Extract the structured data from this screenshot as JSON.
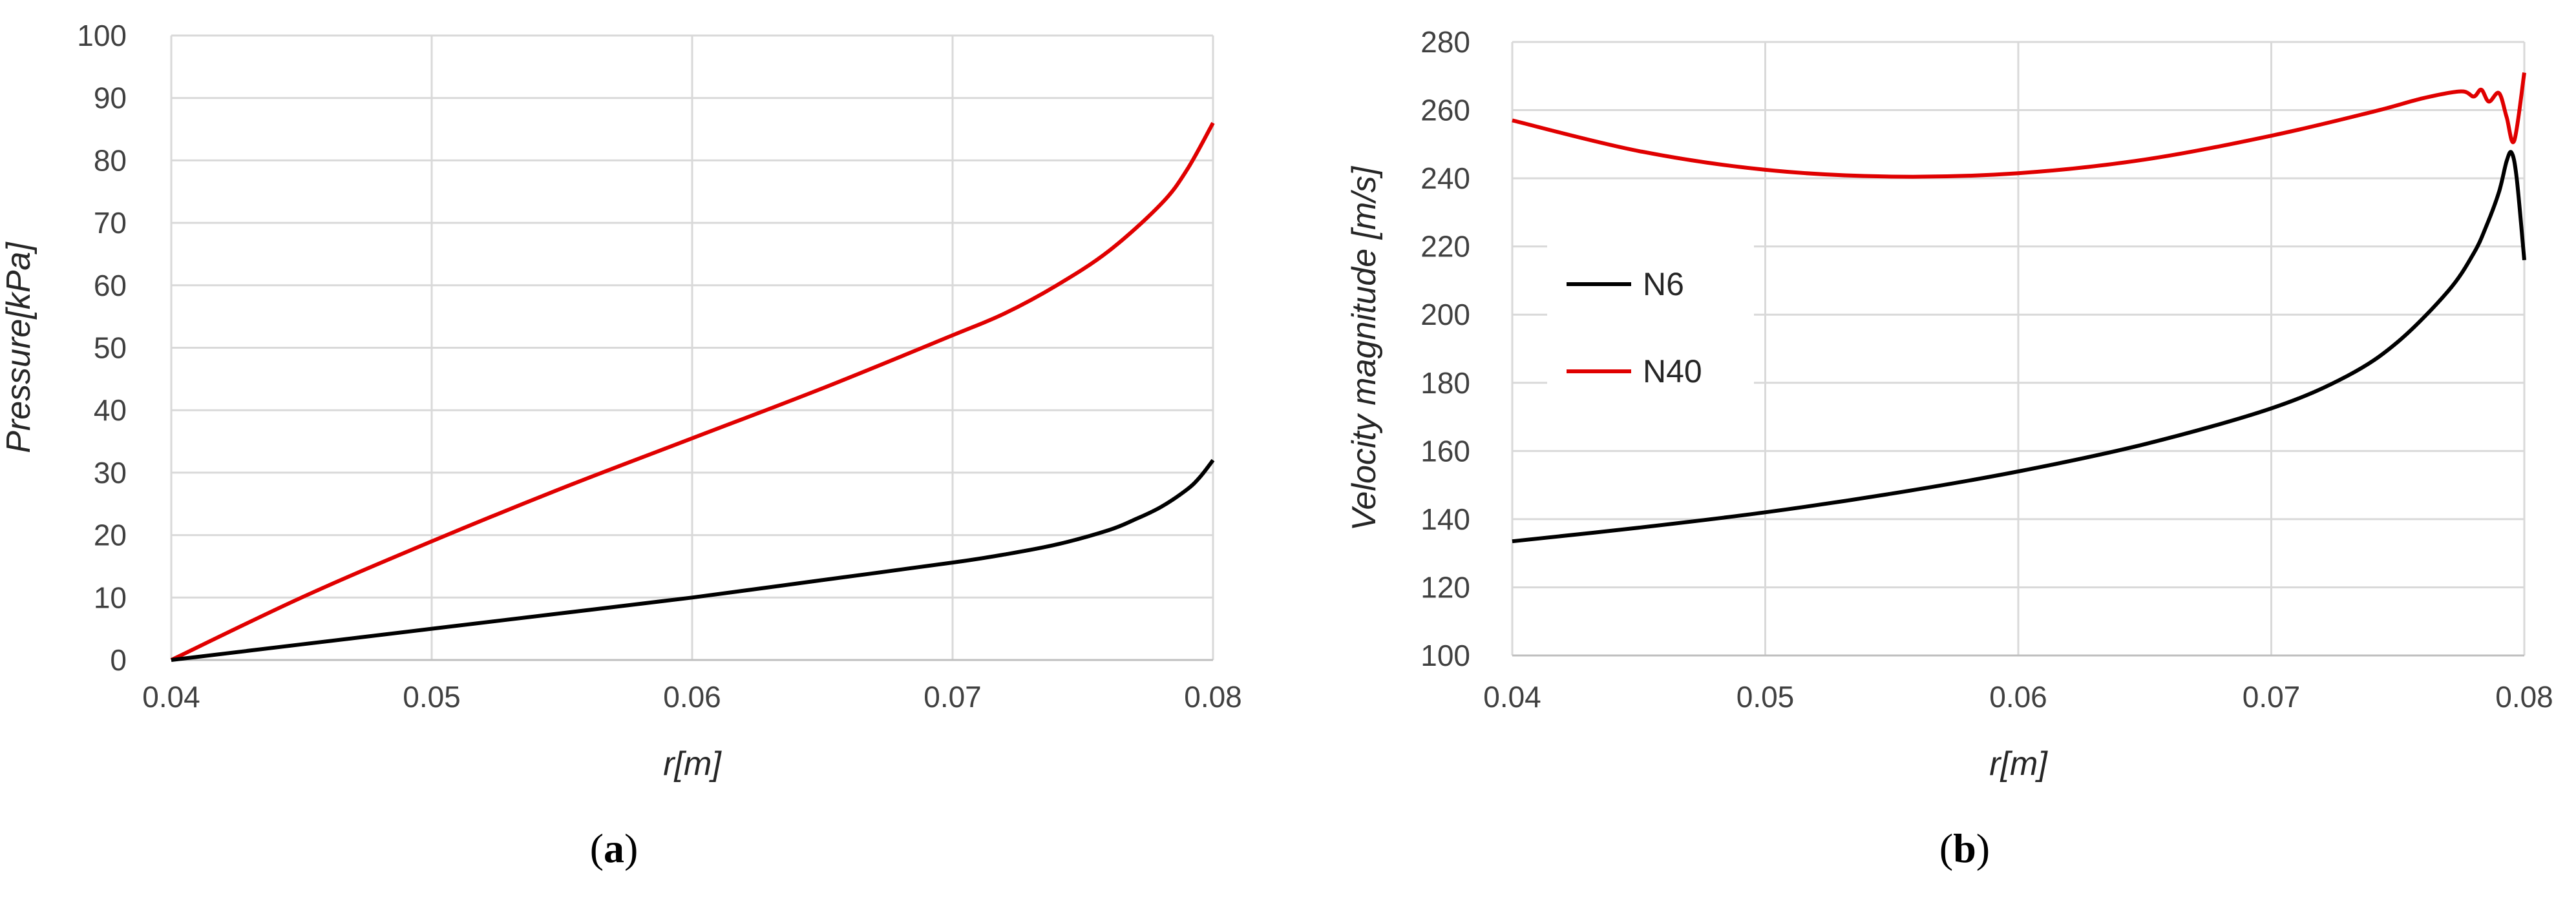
{
  "chart_data": [
    {
      "panel_label": "a",
      "type": "line",
      "title": "",
      "xlabel": "r[m]",
      "ylabel": "Pressure[kPa]",
      "xlim": [
        0.04,
        0.08
      ],
      "ylim": [
        0,
        100
      ],
      "xticks": [
        "0.04",
        "0.05",
        "0.06",
        "0.07",
        "0.08"
      ],
      "yticks": [
        "0",
        "10",
        "20",
        "30",
        "40",
        "50",
        "60",
        "70",
        "80",
        "90",
        "100"
      ],
      "grid": true,
      "legend": "none",
      "series": [
        {
          "color": "#e00000",
          "x": [
            0.04,
            0.045,
            0.05,
            0.055,
            0.06,
            0.065,
            0.07,
            0.072,
            0.074,
            0.076,
            0.078,
            0.079,
            0.08
          ],
          "y": [
            0,
            10,
            19,
            27.5,
            35.5,
            43.5,
            52,
            55.5,
            60,
            65.5,
            73,
            78.5,
            86
          ]
        },
        {
          "color": "#000000",
          "x": [
            0.04,
            0.045,
            0.05,
            0.055,
            0.06,
            0.065,
            0.07,
            0.072,
            0.074,
            0.076,
            0.077,
            0.078,
            0.079,
            0.0795,
            0.08
          ],
          "y": [
            0,
            2.5,
            5,
            7.5,
            10,
            12.8,
            15.6,
            16.9,
            18.5,
            20.8,
            22.5,
            24.5,
            27.3,
            29.3,
            32
          ]
        }
      ]
    },
    {
      "panel_label": "b",
      "type": "line",
      "title": "",
      "xlabel": "r[m]",
      "ylabel": "Velocity magnitude [m/s]",
      "xlim": [
        0.04,
        0.08
      ],
      "ylim": [
        100,
        280
      ],
      "xticks": [
        "0.04",
        "0.05",
        "0.06",
        "0.07",
        "0.08"
      ],
      "yticks": [
        "100",
        "120",
        "140",
        "160",
        "180",
        "200",
        "220",
        "240",
        "260",
        "280"
      ],
      "grid": true,
      "legend": "center-left",
      "series": [
        {
          "name": "N6",
          "color": "#000000",
          "x": [
            0.04,
            0.045,
            0.05,
            0.055,
            0.06,
            0.065,
            0.07,
            0.073,
            0.075,
            0.077,
            0.078,
            0.0785,
            0.079,
            0.0793,
            0.0795,
            0.0797,
            0.08
          ],
          "y": [
            133.5,
            137.5,
            142,
            147.5,
            154,
            162,
            172.5,
            182,
            192,
            207,
            218,
            226,
            236,
            245,
            247.5,
            240,
            216
          ]
        },
        {
          "name": "N40",
          "color": "#e00000",
          "x": [
            0.04,
            0.045,
            0.05,
            0.055,
            0.06,
            0.065,
            0.07,
            0.074,
            0.076,
            0.0775,
            0.078,
            0.0783,
            0.0786,
            0.079,
            0.0793,
            0.0796,
            0.08
          ],
          "y": [
            257,
            248,
            242.5,
            240.5,
            241.5,
            245.5,
            252.5,
            259.5,
            263.5,
            265.5,
            264,
            266,
            262.5,
            265,
            258,
            251,
            271
          ]
        }
      ]
    }
  ]
}
